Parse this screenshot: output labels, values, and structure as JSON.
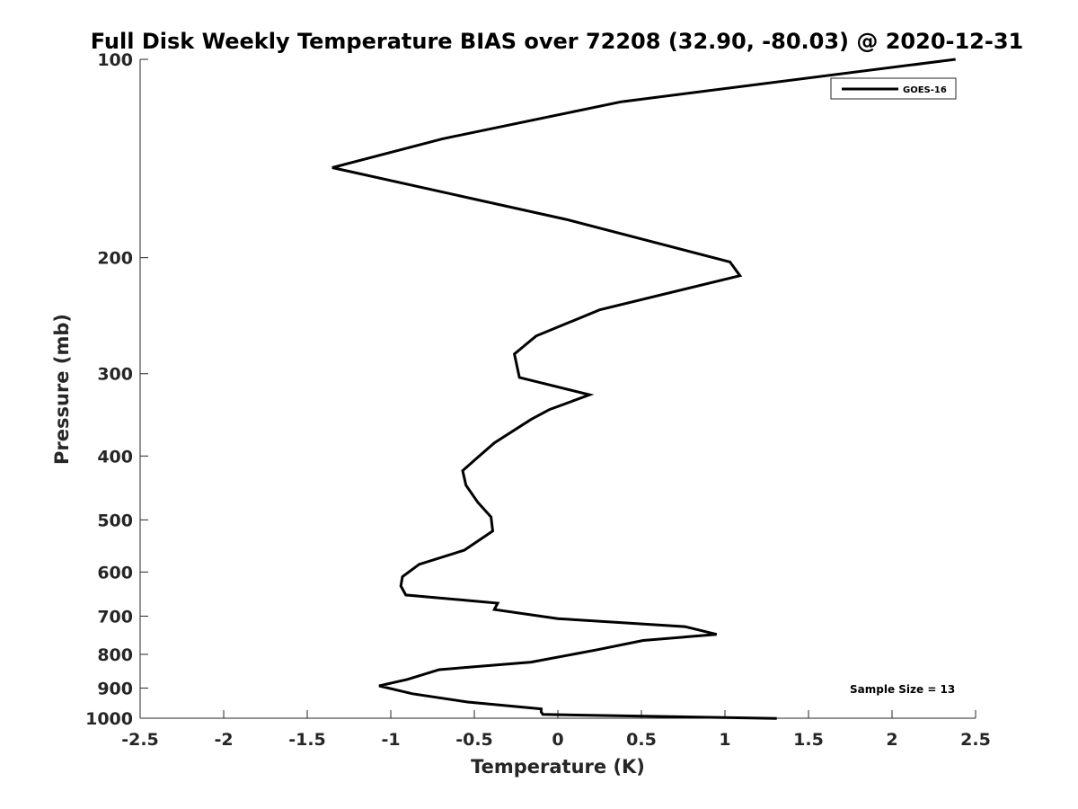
{
  "chart_data": {
    "type": "line",
    "title": "Full Disk Weekly Temperature BIAS over 72208 (32.90, -80.03) @ 2020-12-31",
    "xlabel": "Temperature (K)",
    "ylabel": "Pressure (mb)",
    "xlim": [
      -2.5,
      2.5
    ],
    "ylim": [
      100,
      1000
    ],
    "y_scale": "log",
    "y_reversed": true,
    "grid": false,
    "legend_placement": "top-right",
    "x_ticks": [
      "-2.5",
      "-2",
      "-1.5",
      "-1",
      "-0.5",
      "0",
      "0.5",
      "1",
      "1.5",
      "2",
      "2.5"
    ],
    "y_ticks": [
      "100",
      "200",
      "300",
      "400",
      "500",
      "600",
      "700",
      "800",
      "900",
      "1000"
    ],
    "annotation": "Sample Size = 13",
    "series": [
      {
        "name": "GOES-16",
        "color": "#000000",
        "x": [
          2.38,
          0.38,
          -0.69,
          -1.35,
          0.05,
          1.03,
          1.09,
          0.25,
          -0.13,
          -0.26,
          -0.23,
          0.19,
          -0.05,
          -0.16,
          -0.38,
          -0.48,
          -0.57,
          -0.55,
          -0.48,
          -0.4,
          -0.39,
          -0.56,
          -0.83,
          -0.93,
          -0.94,
          -0.91,
          -0.36,
          -0.38,
          0.0,
          0.76,
          0.95,
          0.51,
          0.24,
          -0.16,
          -0.71,
          -0.9,
          -1.07,
          -0.87,
          -0.54,
          -0.1,
          -0.1,
          -0.09,
          1.31
        ],
        "y": [
          100,
          116,
          132,
          146,
          175,
          203,
          213,
          240,
          263,
          280,
          304,
          323,
          340,
          352,
          382,
          402,
          421,
          443,
          470,
          495,
          520,
          556,
          584,
          610,
          630,
          650,
          669,
          684,
          706,
          726,
          746,
          762,
          787,
          822,
          844,
          873,
          893,
          918,
          945,
          968,
          978,
          987,
          1001
        ]
      }
    ]
  }
}
